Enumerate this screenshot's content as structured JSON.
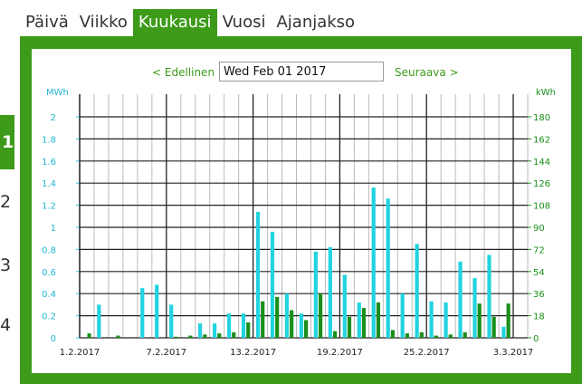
{
  "tabs": [
    {
      "label": "Päivä",
      "active": false
    },
    {
      "label": "Viikko",
      "active": false
    },
    {
      "label": "Kuukausi",
      "active": true
    },
    {
      "label": "Vuosi",
      "active": false
    },
    {
      "label": "Ajanjakso",
      "active": false
    }
  ],
  "side_numbers": [
    "1",
    "2",
    "3",
    "4"
  ],
  "nav": {
    "prev": "< Edellinen",
    "next": "Seuraava >",
    "date_value": "Wed Feb 01 2017"
  },
  "colors": {
    "accent": "#3d9b19",
    "cyan": "#22d3e0",
    "green": "#1a8f1a",
    "grid": "#222222"
  },
  "chart_data": {
    "type": "bar",
    "left_axis": {
      "label": "MWh",
      "ticks": [
        "0",
        "0.2",
        "0.4",
        "0.6",
        "0.8",
        "1",
        "1.2",
        "1.4",
        "1.6",
        "1.8",
        "2"
      ],
      "ylim": [
        0,
        2
      ]
    },
    "right_axis": {
      "label": "kWh",
      "ticks": [
        "0",
        "18",
        "36",
        "54",
        "72",
        "90",
        "108",
        "126",
        "144",
        "162",
        "180"
      ],
      "ylim": [
        0,
        180
      ]
    },
    "x_tick_labels": [
      {
        "day": 1,
        "label": "1.2.2017"
      },
      {
        "day": 7,
        "label": "7.2.2017"
      },
      {
        "day": 13,
        "label": "13.2.2017"
      },
      {
        "day": 19,
        "label": "19.2.2017"
      },
      {
        "day": 25,
        "label": "25.2.2017"
      },
      {
        "day": 31,
        "label": "3.3.2017"
      }
    ],
    "days": 31,
    "series": [
      {
        "color": "cyan",
        "axis": "left",
        "values": [
          0,
          0.3,
          0,
          0,
          0.45,
          0.48,
          0.3,
          0,
          0.13,
          0.13,
          0.22,
          0.22,
          1.14,
          0.96,
          0.4,
          0.22,
          0.78,
          0.82,
          0.57,
          0.32,
          1.36,
          1.26,
          0.4,
          0.85,
          0.33,
          0.32,
          0.69,
          0.54,
          0.75,
          0.1,
          0
        ]
      },
      {
        "color": "green",
        "axis": "left",
        "values": [
          0.04,
          0,
          0.02,
          0,
          0,
          0,
          0.01,
          0.02,
          0.03,
          0.04,
          0.05,
          0.14,
          0.33,
          0.37,
          0.25,
          0.16,
          0.4,
          0.06,
          0.19,
          0.27,
          0.32,
          0.07,
          0.04,
          0.05,
          0.02,
          0.03,
          0.05,
          0.31,
          0.19,
          0.31,
          0
        ]
      }
    ]
  }
}
